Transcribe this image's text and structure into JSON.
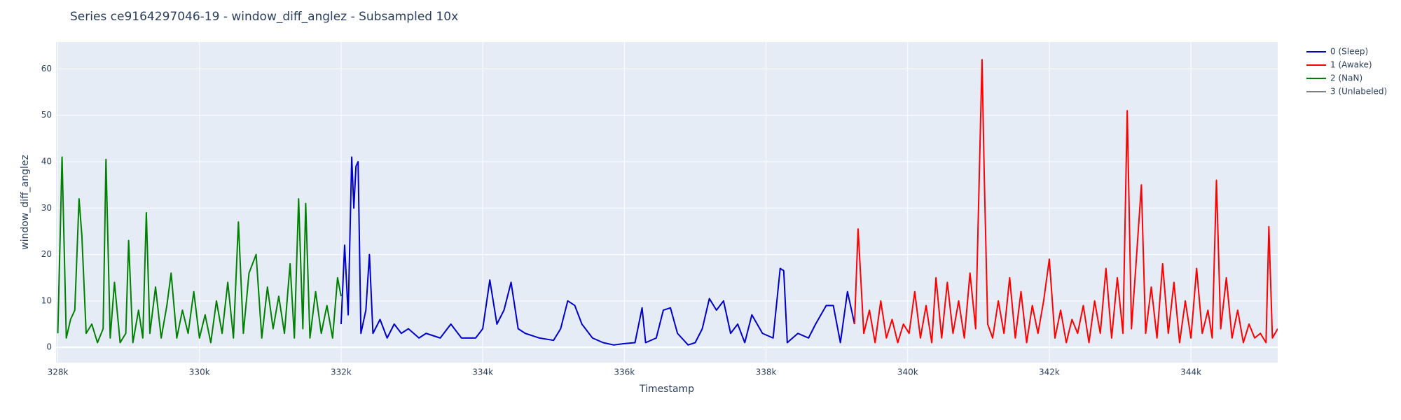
{
  "chart_data": {
    "type": "line",
    "title": "Series ce9164297046-19 - window_diff_anglez - Subsampled 10x",
    "x_label": "Timestamp",
    "y_label": "window_diff_anglez",
    "xlim": [
      327975,
      345225
    ],
    "ylim": [
      -3.3,
      65.8
    ],
    "xticks": [
      {
        "value": 328000,
        "label": "328k"
      },
      {
        "value": 330000,
        "label": "330k"
      },
      {
        "value": 332000,
        "label": "332k"
      },
      {
        "value": 334000,
        "label": "334k"
      },
      {
        "value": 336000,
        "label": "336k"
      },
      {
        "value": 338000,
        "label": "338k"
      },
      {
        "value": 340000,
        "label": "340k"
      },
      {
        "value": 342000,
        "label": "342k"
      },
      {
        "value": 344000,
        "label": "344k"
      }
    ],
    "yticks": [
      0,
      10,
      20,
      30,
      40,
      50,
      60
    ],
    "grid": true,
    "legend": "outside-right",
    "series": [
      {
        "name": "0 (Sleep)",
        "color": "#0000cd",
        "x": [
          332000,
          332050,
          332100,
          332150,
          332180,
          332210,
          332240,
          332280,
          332350,
          332400,
          332450,
          332550,
          332650,
          332750,
          332850,
          332950,
          333100,
          333200,
          333400,
          333550,
          333700,
          333900,
          334000,
          334100,
          334200,
          334300,
          334400,
          334500,
          334600,
          334800,
          335000,
          335100,
          335200,
          335300,
          335400,
          335550,
          335700,
          335850,
          336000,
          336150,
          336250,
          336300,
          336450,
          336550,
          336650,
          336750,
          336900,
          337000,
          337100,
          337200,
          337300,
          337400,
          337500,
          337600,
          337700,
          337800,
          337950,
          338100,
          338200,
          338250,
          338300,
          338450,
          338600,
          338700,
          338850,
          338950,
          339050,
          339150,
          339250
        ],
        "values": [
          5,
          22,
          7,
          41,
          30,
          39,
          40,
          3,
          8,
          20,
          3,
          6,
          2,
          5,
          3,
          4,
          2,
          3,
          2,
          5,
          2,
          2,
          4,
          14.5,
          5,
          8,
          14,
          4,
          3,
          2,
          1.5,
          4,
          10,
          9,
          5,
          2,
          1,
          0.5,
          0.8,
          1,
          8.5,
          1,
          2,
          8,
          8.5,
          3,
          0.5,
          1,
          4,
          10.5,
          8,
          10,
          3,
          5,
          1,
          7,
          3,
          2,
          17,
          16.5,
          1,
          3,
          2,
          5,
          9,
          9,
          1,
          12,
          5
        ]
      },
      {
        "name": "1 (Awake)",
        "color": "#ff0000",
        "x": [
          339250,
          339300,
          339380,
          339460,
          339540,
          339620,
          339700,
          339780,
          339860,
          339940,
          340020,
          340100,
          340180,
          340260,
          340340,
          340400,
          340480,
          340560,
          340640,
          340720,
          340800,
          340880,
          340960,
          341050,
          341080,
          341130,
          341200,
          341280,
          341360,
          341440,
          341520,
          341600,
          341680,
          341760,
          341840,
          341920,
          342000,
          342080,
          342160,
          342240,
          342320,
          342400,
          342480,
          342560,
          342640,
          342720,
          342800,
          342880,
          342960,
          343040,
          343100,
          343160,
          343220,
          343300,
          343360,
          343440,
          343520,
          343600,
          343680,
          343760,
          343840,
          343920,
          344000,
          344080,
          344160,
          344240,
          344300,
          344360,
          344420,
          344500,
          344580,
          344660,
          344740,
          344820,
          344900,
          344980,
          345060,
          345100,
          345150,
          345225
        ],
        "values": [
          5,
          25.5,
          3,
          8,
          1,
          10,
          2,
          6,
          1,
          5,
          3,
          12,
          2,
          9,
          1,
          15,
          2,
          14,
          3,
          10,
          2,
          16,
          4,
          62,
          38,
          5,
          2,
          10,
          3,
          15,
          2,
          12,
          1,
          9,
          3,
          10,
          19,
          2,
          8,
          1,
          6,
          3,
          9,
          1,
          10,
          3,
          17,
          2,
          15,
          3,
          51,
          4,
          17,
          35,
          3,
          13,
          2,
          18,
          3,
          14,
          1,
          10,
          2,
          17,
          3,
          8,
          2,
          36,
          4,
          15,
          2,
          8,
          1,
          5,
          2,
          3,
          1,
          26,
          2,
          4
        ]
      },
      {
        "name": "2 (NaN)",
        "color": "#008000",
        "x": [
          328000,
          328060,
          328120,
          328180,
          328240,
          328300,
          328340,
          328400,
          328480,
          328560,
          328640,
          328680,
          328740,
          328800,
          328880,
          328960,
          329000,
          329060,
          329140,
          329200,
          329250,
          329300,
          329380,
          329460,
          329540,
          329600,
          329680,
          329760,
          329840,
          329920,
          330000,
          330080,
          330160,
          330240,
          330320,
          330400,
          330480,
          330550,
          330620,
          330700,
          330800,
          330880,
          330960,
          331040,
          331120,
          331200,
          331280,
          331340,
          331400,
          331460,
          331500,
          331560,
          331640,
          331720,
          331800,
          331880,
          331950,
          332000
        ],
        "values": [
          3,
          41,
          2,
          6,
          8,
          32,
          24,
          3,
          5,
          1,
          4,
          40.5,
          2,
          14,
          1,
          3,
          23,
          1,
          8,
          2,
          29,
          3,
          13,
          2,
          9,
          16,
          2,
          8,
          3,
          12,
          2,
          7,
          1,
          10,
          3,
          14,
          2,
          27,
          3,
          16,
          20,
          2,
          13,
          4,
          11,
          3,
          18,
          2,
          32,
          4,
          31,
          2,
          12,
          3,
          9,
          2,
          15,
          11
        ]
      },
      {
        "name": "3 (Unlabeled)",
        "color": "#808080",
        "x": [],
        "values": []
      }
    ]
  }
}
